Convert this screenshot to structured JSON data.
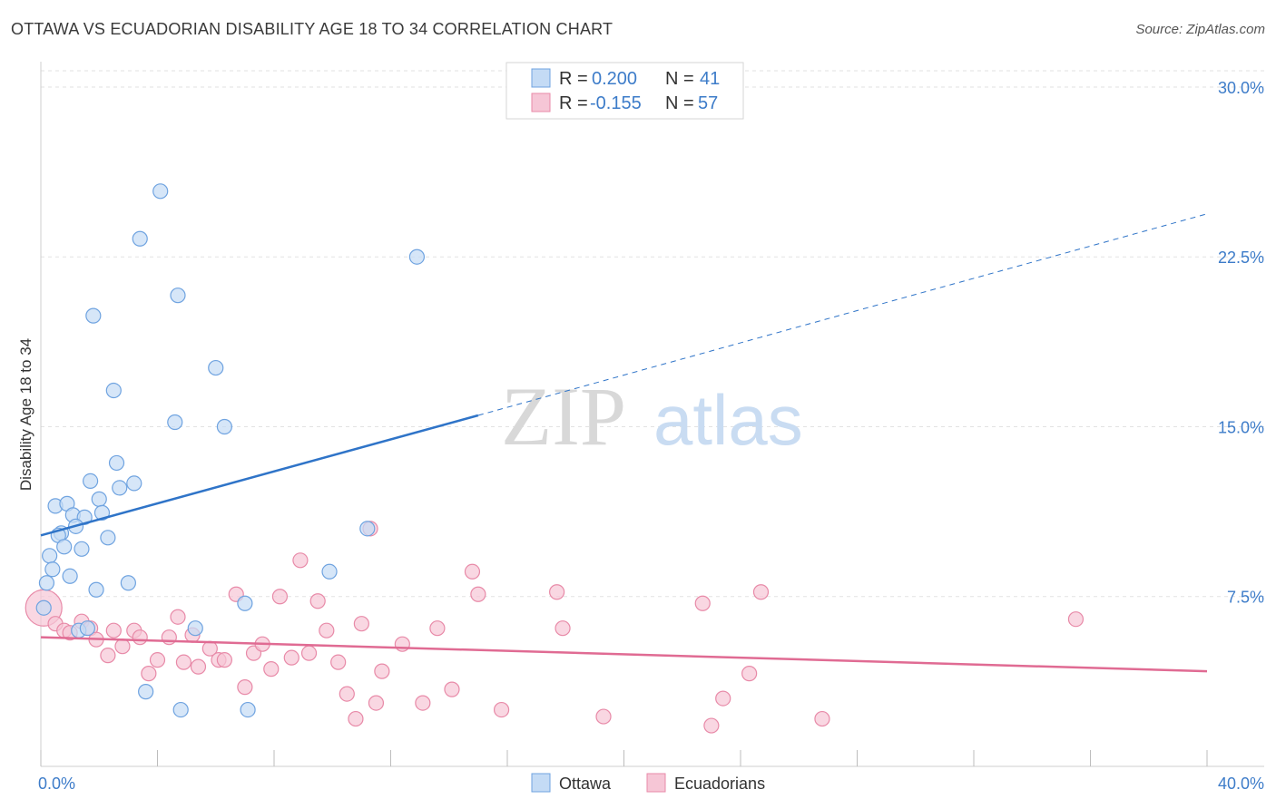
{
  "chart_data": {
    "type": "scatter",
    "title": "OTTAWA VS ECUADORIAN DISABILITY AGE 18 TO 34 CORRELATION CHART",
    "source": "Source: ZipAtlas.com",
    "xlabel": "",
    "ylabel": "Disability Age 18 to 34",
    "xlim": [
      0,
      40
    ],
    "ylim": [
      0,
      31
    ],
    "x_tick_labels": [
      {
        "value": 0,
        "label": "0.0%"
      },
      {
        "value": 40,
        "label": "40.0%"
      }
    ],
    "y_tick_labels": [
      {
        "value": 7.5,
        "label": "7.5%"
      },
      {
        "value": 15,
        "label": "15.0%"
      },
      {
        "value": 22.5,
        "label": "22.5%"
      },
      {
        "value": 30,
        "label": "30.0%"
      }
    ],
    "watermark": {
      "part1": "ZIP",
      "part2": "atlas"
    },
    "legend": {
      "r_label": "R = ",
      "n_label": "N = ",
      "entries": [
        {
          "r": "0.200",
          "n": "41"
        },
        {
          "r": "-0.155",
          "n": "57"
        }
      ]
    },
    "series": [
      {
        "name": "Ottawa",
        "color": "#6fa3e0",
        "fill": "#c4dbf5",
        "line_color": "#2f74c8",
        "trend": {
          "x0": 0,
          "y0": 10.2,
          "x1": 15.0,
          "y1": 15.5,
          "x_dash_end": 40,
          "y_dash_end": 24.4
        },
        "points": [
          [
            4.1,
            25.4
          ],
          [
            3.4,
            23.3
          ],
          [
            4.7,
            20.8
          ],
          [
            1.8,
            19.9
          ],
          [
            12.9,
            22.5
          ],
          [
            6.0,
            17.6
          ],
          [
            2.5,
            16.6
          ],
          [
            4.6,
            15.2
          ],
          [
            6.3,
            15.0
          ],
          [
            2.6,
            13.4
          ],
          [
            1.7,
            12.6
          ],
          [
            3.2,
            12.5
          ],
          [
            2.7,
            12.3
          ],
          [
            0.5,
            11.5
          ],
          [
            0.9,
            11.6
          ],
          [
            2.0,
            11.8
          ],
          [
            1.1,
            11.1
          ],
          [
            1.5,
            11.0
          ],
          [
            2.1,
            11.2
          ],
          [
            1.2,
            10.6
          ],
          [
            0.7,
            10.3
          ],
          [
            0.6,
            10.2
          ],
          [
            2.3,
            10.1
          ],
          [
            0.8,
            9.7
          ],
          [
            1.4,
            9.6
          ],
          [
            11.2,
            10.5
          ],
          [
            0.3,
            9.3
          ],
          [
            0.4,
            8.7
          ],
          [
            9.9,
            8.6
          ],
          [
            1.0,
            8.4
          ],
          [
            0.2,
            8.1
          ],
          [
            3.0,
            8.1
          ],
          [
            1.9,
            7.8
          ],
          [
            0.1,
            7.0
          ],
          [
            7.0,
            7.2
          ],
          [
            1.3,
            6.0
          ],
          [
            1.6,
            6.1
          ],
          [
            5.3,
            6.1
          ],
          [
            3.6,
            3.3
          ],
          [
            4.8,
            2.5
          ],
          [
            7.1,
            2.5
          ]
        ]
      },
      {
        "name": "Ecuadorians",
        "color": "#e88aa8",
        "fill": "#f6c6d6",
        "line_color": "#e06b93",
        "trend": {
          "x0": 0,
          "y0": 5.7,
          "x1": 40,
          "y1": 4.2
        },
        "points": [
          [
            0.1,
            7.0
          ],
          [
            0.5,
            6.3
          ],
          [
            0.8,
            6.0
          ],
          [
            1.0,
            5.9
          ],
          [
            1.4,
            6.4
          ],
          [
            1.7,
            6.1
          ],
          [
            1.9,
            5.6
          ],
          [
            2.3,
            4.9
          ],
          [
            2.5,
            6.0
          ],
          [
            2.8,
            5.3
          ],
          [
            3.2,
            6.0
          ],
          [
            3.4,
            5.7
          ],
          [
            3.7,
            4.1
          ],
          [
            4.0,
            4.7
          ],
          [
            4.4,
            5.7
          ],
          [
            4.7,
            6.6
          ],
          [
            4.9,
            4.6
          ],
          [
            5.2,
            5.8
          ],
          [
            5.4,
            4.4
          ],
          [
            5.8,
            5.2
          ],
          [
            6.1,
            4.7
          ],
          [
            6.3,
            4.7
          ],
          [
            6.7,
            7.6
          ],
          [
            7.0,
            3.5
          ],
          [
            7.3,
            5.0
          ],
          [
            7.6,
            5.4
          ],
          [
            7.9,
            4.3
          ],
          [
            8.2,
            7.5
          ],
          [
            8.6,
            4.8
          ],
          [
            8.9,
            9.1
          ],
          [
            9.2,
            5.0
          ],
          [
            9.5,
            7.3
          ],
          [
            9.8,
            6.0
          ],
          [
            10.2,
            4.6
          ],
          [
            10.5,
            3.2
          ],
          [
            10.8,
            2.1
          ],
          [
            11.0,
            6.3
          ],
          [
            11.5,
            2.8
          ],
          [
            11.7,
            4.2
          ],
          [
            12.4,
            5.4
          ],
          [
            13.6,
            6.1
          ],
          [
            13.1,
            2.8
          ],
          [
            14.1,
            3.4
          ],
          [
            14.8,
            8.6
          ],
          [
            15.0,
            7.6
          ],
          [
            15.8,
            2.5
          ],
          [
            17.7,
            7.7
          ],
          [
            17.9,
            6.1
          ],
          [
            19.3,
            2.2
          ],
          [
            22.7,
            7.2
          ],
          [
            23.0,
            1.8
          ],
          [
            23.4,
            3.0
          ],
          [
            24.3,
            4.1
          ],
          [
            24.7,
            7.7
          ],
          [
            26.8,
            2.1
          ],
          [
            35.5,
            6.5
          ],
          [
            11.3,
            10.5
          ]
        ]
      }
    ]
  }
}
